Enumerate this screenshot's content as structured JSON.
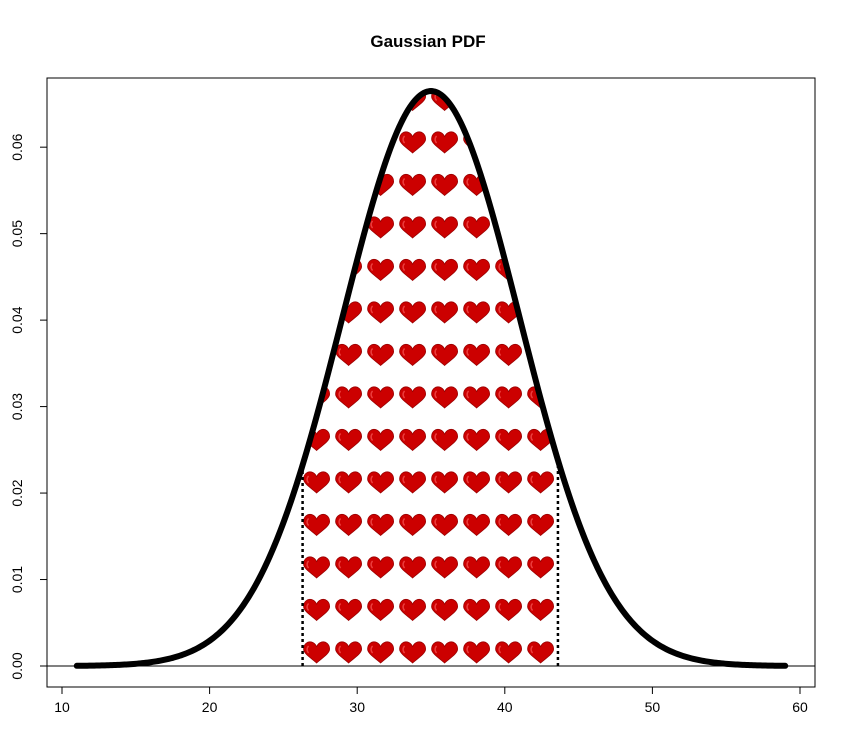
{
  "chart_data": {
    "type": "line",
    "title": "Gaussian PDF",
    "xlabel": "",
    "ylabel": "",
    "xlim": [
      10,
      60
    ],
    "ylim": [
      0,
      0.068
    ],
    "x_ticks": [
      10,
      20,
      30,
      40,
      50,
      60
    ],
    "y_ticks": [
      0.0,
      0.01,
      0.02,
      0.03,
      0.04,
      0.05,
      0.06
    ],
    "y_tick_labels": [
      "0.00",
      "0.01",
      "0.02",
      "0.03",
      "0.04",
      "0.05",
      "0.06"
    ],
    "x_tick_labels": [
      "10",
      "20",
      "30",
      "40",
      "50",
      "60"
    ],
    "grid": false,
    "series": [
      {
        "distribution": "normal",
        "mean": 35,
        "sd": 6,
        "x_range": [
          11,
          59
        ],
        "color": "#000000"
      }
    ],
    "shaded_region": {
      "x_range": [
        26.3,
        43.6
      ],
      "fill_pattern": "heart-icon",
      "fill_color": "#cc0000",
      "boundary_style": "dotted"
    },
    "baseline": 0
  }
}
